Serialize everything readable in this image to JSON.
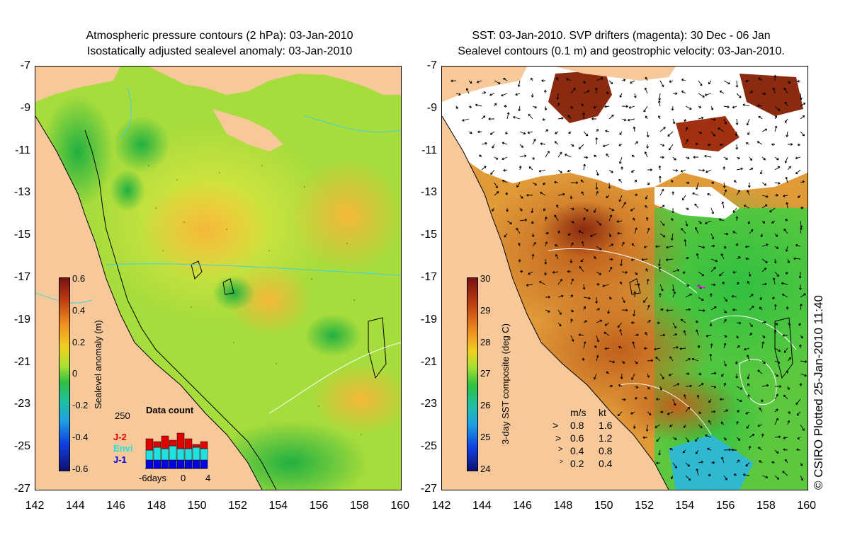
{
  "left_panel": {
    "title_line1": "Atmospheric pressure contours (2 hPa): 03-Jan-2010",
    "title_line2": "Isostatically adjusted sealevel anomaly: 03-Jan-2010",
    "colorbar": {
      "label": "Sealevel anomaly (m)",
      "ticks": [
        "0.6",
        "0.4",
        "0.2",
        "0",
        "-0.2",
        "-0.4",
        "-0.6"
      ]
    },
    "data_count": {
      "title": "Data count",
      "ymax": "250",
      "legend": [
        {
          "name": "J-2",
          "color": "#e00000"
        },
        {
          "name": "Envi",
          "color": "#20e0e0"
        },
        {
          "name": "J-1",
          "color": "#0000e0"
        }
      ],
      "xticks": [
        "-6days",
        "0",
        "4"
      ]
    }
  },
  "right_panel": {
    "title_line1": "SST: 03-Jan-2010. SVP drifters (magenta): 30 Dec - 06 Jan",
    "title_line2": "Sealevel contours (0.1 m) and geostrophic velocity: 03-Jan-2010.",
    "colorbar": {
      "label": "3-day SST composite (deg C)",
      "ticks": [
        "30",
        "29",
        "28",
        "27",
        "26",
        "25",
        "24"
      ]
    },
    "velocity_legend": {
      "header_ms": "m/s",
      "header_kt": "kt",
      "rows": [
        {
          "ms": "0.8",
          "kt": "1.6"
        },
        {
          "ms": "0.6",
          "kt": "1.2"
        },
        {
          "ms": "0.4",
          "kt": "0.8"
        },
        {
          "ms": "0.2",
          "kt": "0.4"
        }
      ]
    },
    "credit": "© CSIRO Plotted 25-Jan-2010 11:40"
  },
  "axes": {
    "lat_ticks": [
      "-7",
      "-9",
      "-11",
      "-13",
      "-15",
      "-17",
      "-19",
      "-21",
      "-23",
      "-25",
      "-27"
    ],
    "lon_ticks": [
      "142",
      "144",
      "146",
      "148",
      "150",
      "152",
      "154",
      "156",
      "158",
      "160"
    ]
  },
  "colors": {
    "land": "#f7c89a",
    "ocean_green": "#8fd63a",
    "ocean_yellow": "#d8e840",
    "ocean_orange": "#f2c040",
    "sst_brown": "#c2601e"
  }
}
